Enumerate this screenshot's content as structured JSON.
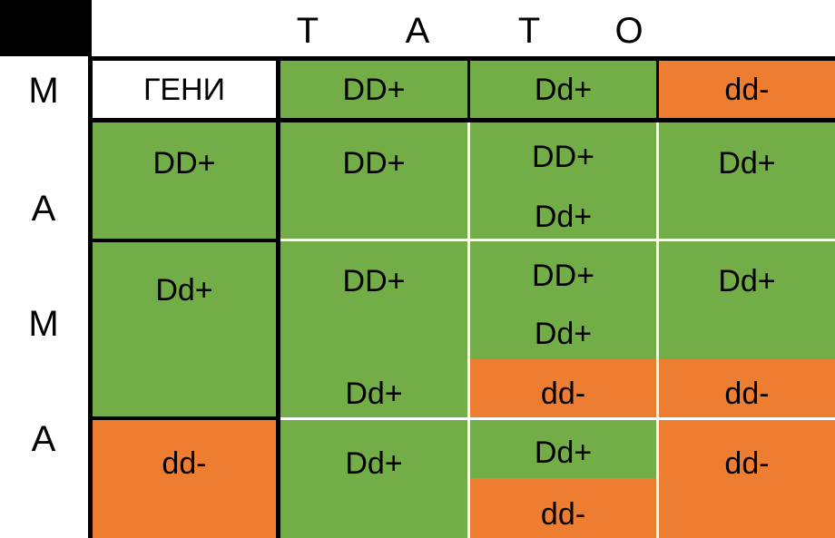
{
  "header": {
    "father_letters": [
      "Т",
      "А",
      "Т",
      "О"
    ],
    "mother_letters": [
      "М",
      "А",
      "М",
      "А"
    ],
    "genes_label": "ГЕНИ"
  },
  "father_genes": [
    "DD+",
    "Dd+",
    "dd-"
  ],
  "mother_genes": [
    "DD+",
    "Dd+",
    "dd-"
  ],
  "cells": {
    "r1c1": [
      "DD+"
    ],
    "r1c2": [
      "DD+",
      "Dd+"
    ],
    "r1c3": [
      "Dd+"
    ],
    "r2c1": [
      "DD+",
      "Dd+"
    ],
    "r2c2": [
      "DD+",
      "Dd+",
      "dd-"
    ],
    "r2c3": [
      "Dd+",
      "dd-"
    ],
    "r3c1": [
      "Dd+"
    ],
    "r3c2": [
      "Dd+",
      "dd-"
    ],
    "r3c3": [
      "dd-"
    ]
  },
  "colors": {
    "dominant_green": "#72ad47",
    "recessive_orange": "#ed7d31",
    "grid_lines": "#000000",
    "inner_lines": "#ffffff"
  }
}
